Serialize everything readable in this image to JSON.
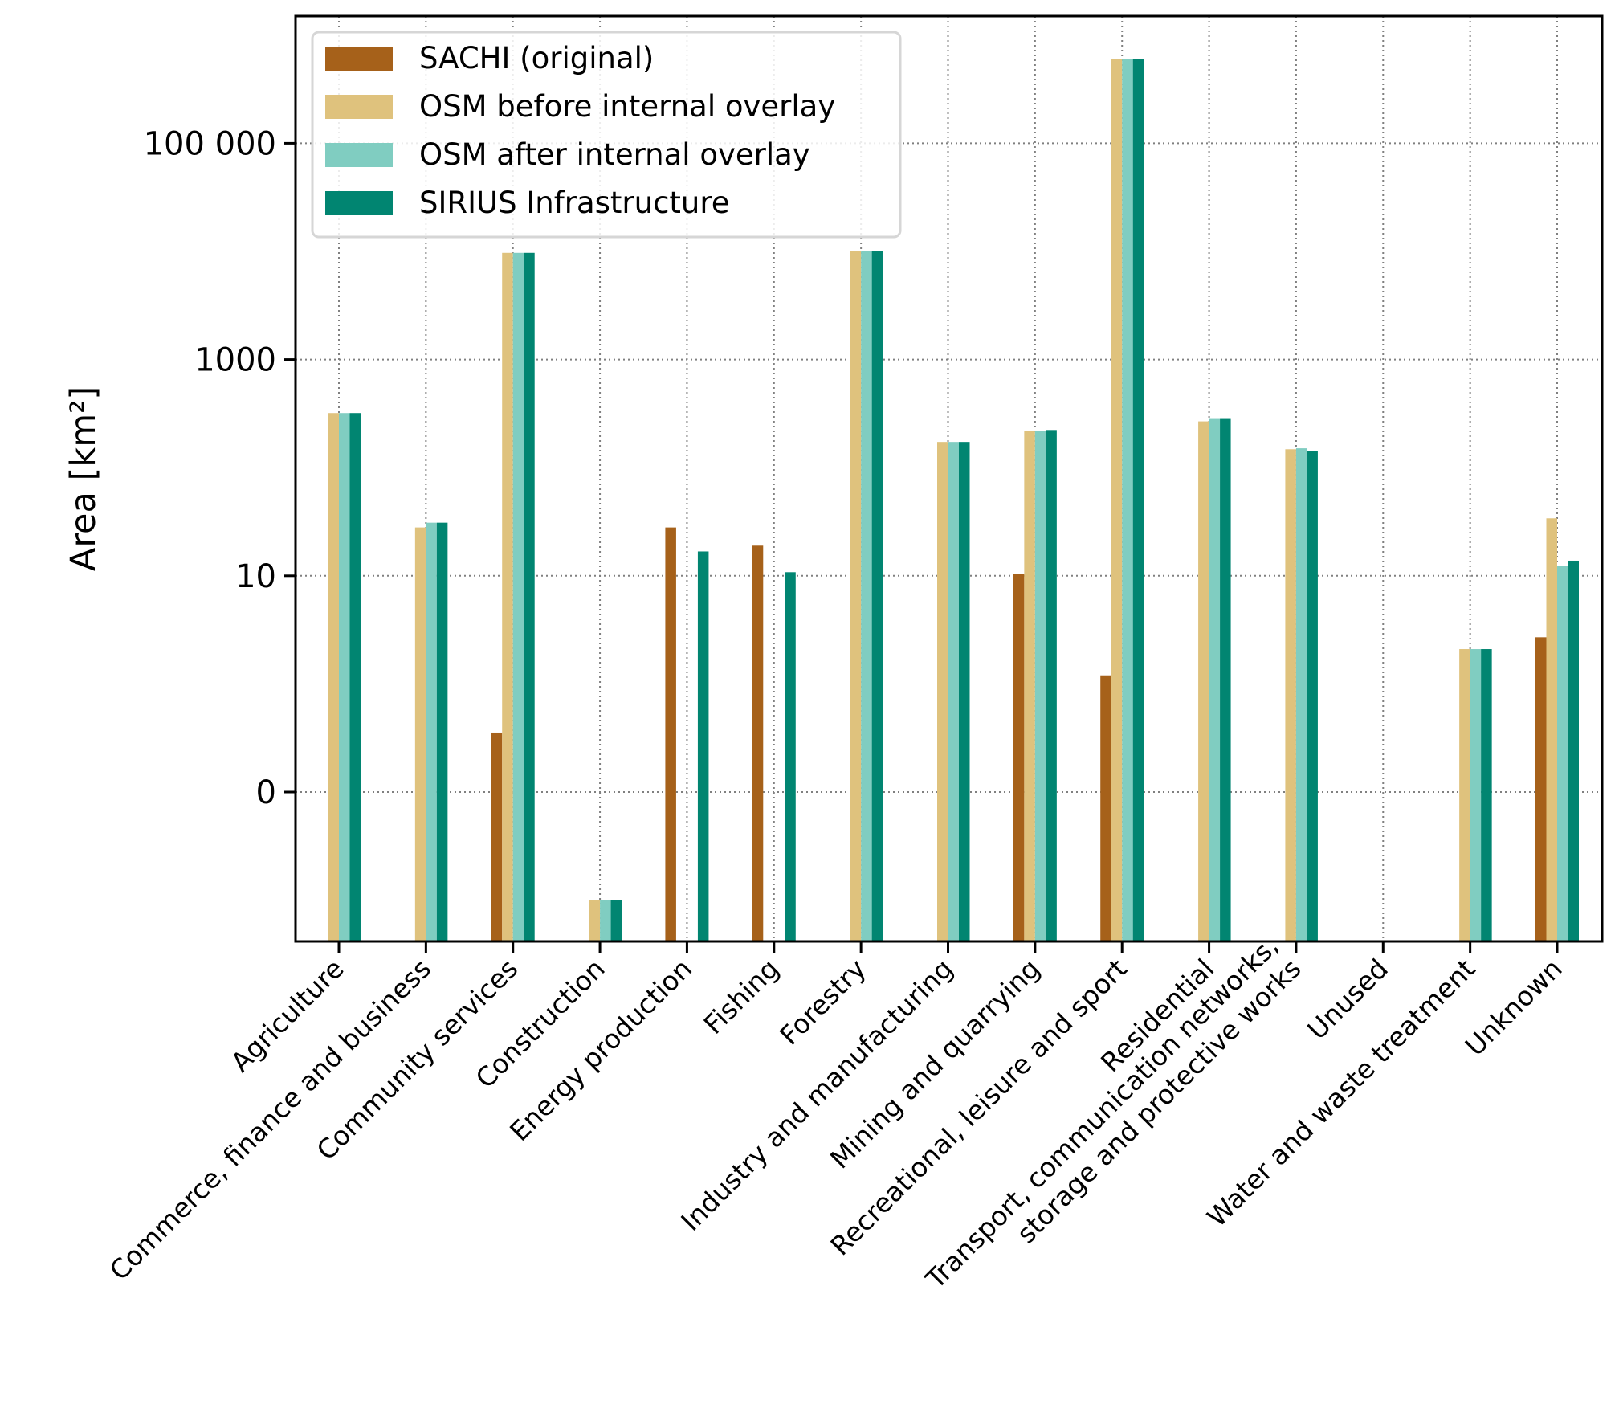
{
  "chart_data": {
    "type": "bar",
    "title": "",
    "xlabel": "",
    "ylabel": "Area [km²]",
    "yscale": "symlog",
    "linthresh": 1,
    "ylim": [
      -2.4,
      1100000
    ],
    "yticks": [
      {
        "value": 0,
        "label": "0"
      },
      {
        "value": 10,
        "label": "10"
      },
      {
        "value": 1000,
        "label": "1000"
      },
      {
        "value": 100000,
        "label": "100 000"
      }
    ],
    "grid": true,
    "legend_position": "top-left",
    "categories": [
      [
        "Agriculture"
      ],
      [
        "Commerce, finance and business"
      ],
      [
        "Community services"
      ],
      [
        "Construction"
      ],
      [
        "Energy production"
      ],
      [
        "Fishing"
      ],
      [
        "Forestry"
      ],
      [
        "Industry and manufacturing"
      ],
      [
        "Mining and quarrying"
      ],
      [
        "Recreational, leisure and sport"
      ],
      [
        "Residential"
      ],
      [
        "Transport, communication networks,",
        "storage and protective works"
      ],
      [
        "Unused"
      ],
      [
        "Water and waste treatment"
      ],
      [
        "Unknown"
      ]
    ],
    "series": [
      {
        "name": "SACHI (original)",
        "color": "#a6611a",
        "values": [
          null,
          null,
          0.55,
          null,
          28,
          19,
          null,
          null,
          10.4,
          1.2,
          null,
          null,
          null,
          null,
          2.7
        ]
      },
      {
        "name": "OSM before internal overlay",
        "color": "#dfc27d",
        "values": [
          320,
          28,
          9700,
          -1.0,
          null,
          null,
          10100,
          173,
          220,
          600000,
          268,
          148,
          null,
          2.1,
          34
        ]
      },
      {
        "name": "OSM after internal overlay",
        "color": "#80cdc1",
        "values": [
          320,
          31,
          9700,
          -1.0,
          null,
          null,
          10100,
          173,
          220,
          600000,
          287,
          151,
          null,
          2.1,
          12.4
        ]
      },
      {
        "name": "SIRIUS Infrastructure",
        "color": "#018571",
        "values": [
          320,
          31,
          9700,
          -1.0,
          16.8,
          10.8,
          10100,
          173,
          223,
          600000,
          287,
          142,
          null,
          2.1,
          13.8
        ]
      }
    ]
  }
}
